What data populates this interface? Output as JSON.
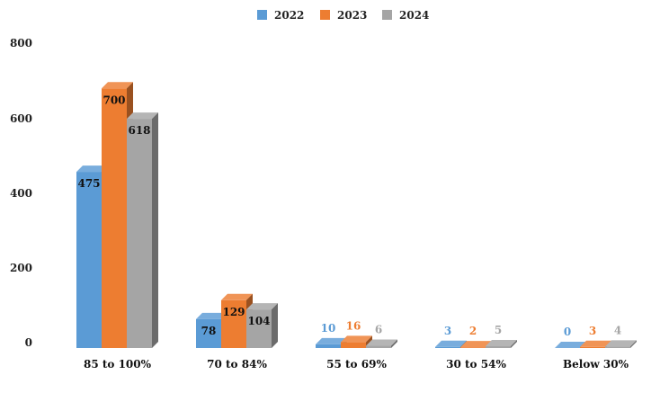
{
  "chart_data": {
    "type": "bar",
    "style": "3d-clustered-column",
    "categories": [
      "85 to 100%",
      "70 to 84%",
      "55 to 69%",
      "30 to 54%",
      "Below 30%"
    ],
    "series": [
      {
        "name": "2022",
        "values": [
          475,
          78,
          10,
          3,
          0
        ],
        "color": "#5B9BD5"
      },
      {
        "name": "2023",
        "values": [
          700,
          129,
          16,
          2,
          3
        ],
        "color": "#ED7D31"
      },
      {
        "name": "2024",
        "values": [
          618,
          104,
          6,
          5,
          4
        ],
        "color": "#A5A5A5"
      }
    ],
    "y_ticks": [
      "0",
      "200",
      "400",
      "600",
      "800"
    ],
    "ylim": [
      0,
      800
    ],
    "grid": false,
    "legend_position": "top-center"
  }
}
